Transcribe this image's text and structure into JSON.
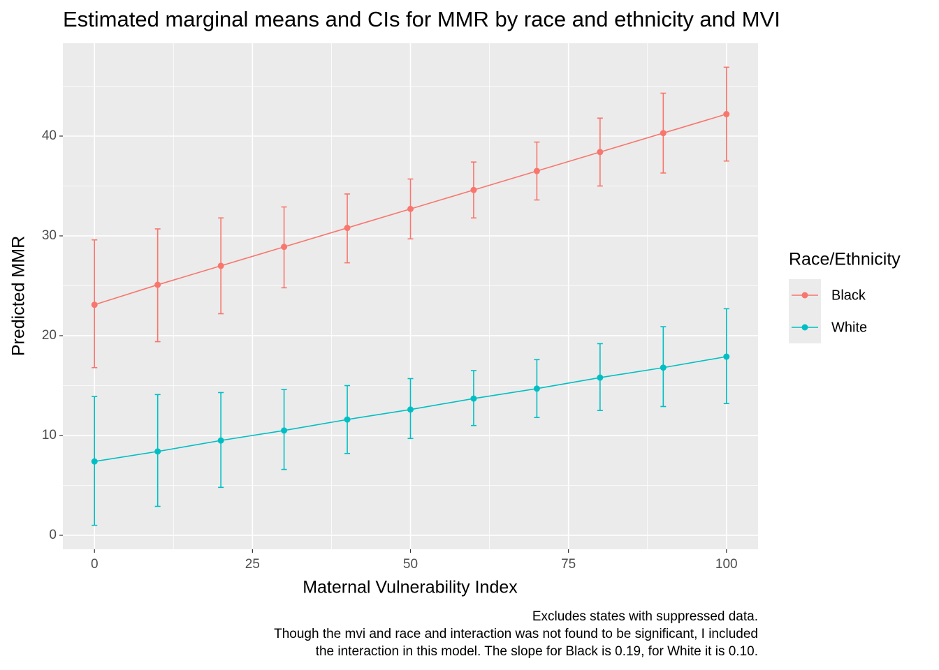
{
  "chart_data": {
    "type": "line-errorbar",
    "title": "Estimated marginal means and CIs for MMR by race and ethnicity and MVI",
    "x_label": "Maternal Vulnerability Index",
    "y_label": "Predicted MMR",
    "legend_title": "Race/Ethnicity",
    "legend_position": "right",
    "caption": [
      "Excludes states with suppressed data.",
      "Though the mvi and race and interaction was not found to be significant, I included",
      "the interaction in this model. The slope for Black is 0.19, for White it is 0.10."
    ],
    "grid": true,
    "x": [
      0,
      10,
      20,
      30,
      40,
      50,
      60,
      70,
      80,
      90,
      100
    ],
    "xlim": [
      -5,
      105
    ],
    "xticks": [
      0,
      25,
      50,
      75,
      100
    ],
    "ylim": [
      -1.4,
      49.3
    ],
    "yticks": [
      0,
      10,
      20,
      30,
      40
    ],
    "series": [
      {
        "name": "Black",
        "color": "#f8766d",
        "values": [
          23.1,
          25.1,
          27.0,
          28.9,
          30.8,
          32.7,
          34.6,
          36.5,
          38.4,
          40.3,
          42.2
        ],
        "lower": [
          16.8,
          19.4,
          22.2,
          24.8,
          27.3,
          29.7,
          31.8,
          33.6,
          35.0,
          36.3,
          37.5
        ],
        "upper": [
          29.6,
          30.7,
          31.8,
          32.9,
          34.2,
          35.7,
          37.4,
          39.4,
          41.8,
          44.3,
          46.9
        ]
      },
      {
        "name": "White",
        "color": "#00bfc4",
        "values": [
          7.4,
          8.4,
          9.5,
          10.5,
          11.6,
          12.6,
          13.7,
          14.7,
          15.8,
          16.8,
          17.9
        ],
        "lower": [
          1.0,
          2.9,
          4.8,
          6.6,
          8.2,
          9.7,
          11.0,
          11.8,
          12.5,
          12.9,
          13.2
        ],
        "upper": [
          13.9,
          14.1,
          14.3,
          14.6,
          15.0,
          15.7,
          16.5,
          17.6,
          19.2,
          20.9,
          22.7
        ]
      }
    ]
  }
}
